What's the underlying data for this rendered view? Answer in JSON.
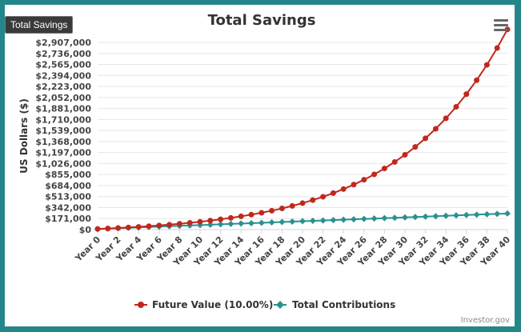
{
  "tooltip_text": "Total Savings",
  "credit": "Investor.gov",
  "colors": {
    "future": "#c0281d",
    "contrib": "#2a9191",
    "grid": "#e6e6e6"
  },
  "chart_data": {
    "type": "line",
    "title": "Total Savings",
    "ylabel": "US Dollars ($)",
    "xlabel": "",
    "ylim": [
      0,
      2907000
    ],
    "yticks": [
      "$0",
      "$171,000",
      "$342,000",
      "$513,000",
      "$684,000",
      "$855,000",
      "$1,026,000",
      "$1,197,000",
      "$1,368,000",
      "$1,539,000",
      "$1,710,000",
      "$1,881,000",
      "$2,052,000",
      "$2,223,000",
      "$2,394,000",
      "$2,565,000",
      "$2,736,000",
      "$2,907,000"
    ],
    "x": [
      "Year 0",
      "Year 1",
      "Year 2",
      "Year 3",
      "Year 4",
      "Year 5",
      "Year 6",
      "Year 7",
      "Year 8",
      "Year 9",
      "Year 10",
      "Year 11",
      "Year 12",
      "Year 13",
      "Year 14",
      "Year 15",
      "Year 16",
      "Year 17",
      "Year 18",
      "Year 19",
      "Year 20",
      "Year 21",
      "Year 22",
      "Year 23",
      "Year 24",
      "Year 25",
      "Year 26",
      "Year 27",
      "Year 28",
      "Year 29",
      "Year 30",
      "Year 31",
      "Year 32",
      "Year 33",
      "Year 34",
      "Year 35",
      "Year 36",
      "Year 37",
      "Year 38",
      "Year 39",
      "Year 40"
    ],
    "xtick_labels": [
      "Year 0",
      "Year 2",
      "Year 4",
      "Year 6",
      "Year 8",
      "Year 10",
      "Year 12",
      "Year 14",
      "Year 16",
      "Year 18",
      "Year 20",
      "Year 22",
      "Year 24",
      "Year 26",
      "Year 28",
      "Year 30",
      "Year 32",
      "Year 34",
      "Year 36",
      "Year 38",
      "Year 40"
    ],
    "legend_position": "bottom",
    "series": [
      {
        "name": "Future Value (10.00%)",
        "values": [
          10000,
          17000,
          24700,
          33170,
          42487,
          52736,
          64009,
          76410,
          90051,
          105056,
          121562,
          139718,
          159690,
          181659,
          205825,
          232407,
          261648,
          293813,
          329194,
          368114,
          410925,
          458017,
          509819,
          566801,
          629481,
          698429,
          774272,
          857699,
          949469,
          1050416,
          1161458,
          1283604,
          1417964,
          1565761,
          1728337,
          1907171,
          2103888,
          2320277,
          2558304,
          2820135,
          3108148
        ]
      },
      {
        "name": "Total Contributions",
        "values": [
          10000,
          16000,
          22000,
          28000,
          34000,
          40000,
          46000,
          52000,
          58000,
          64000,
          70000,
          76000,
          82000,
          88000,
          94000,
          100000,
          106000,
          112000,
          118000,
          124000,
          130000,
          136000,
          142000,
          148000,
          154000,
          160000,
          166000,
          172000,
          178000,
          184000,
          190000,
          196000,
          202000,
          208000,
          214000,
          220000,
          226000,
          232000,
          238000,
          244000,
          250000
        ]
      }
    ]
  }
}
